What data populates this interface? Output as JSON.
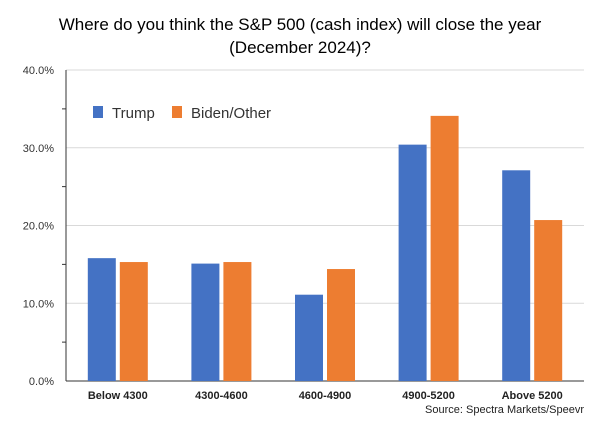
{
  "chart_data": {
    "type": "bar",
    "title_lines": [
      "Where do you think the S&P 500 (cash index) will close the year",
      "(December 2024)?"
    ],
    "categories": [
      "Below 4300",
      "4300-4600",
      "4600-4900",
      "4900-5200",
      "Above 5200"
    ],
    "series": [
      {
        "name": "Trump",
        "color": "#4472C4",
        "values": [
          15.8,
          15.1,
          11.1,
          30.4,
          27.1
        ]
      },
      {
        "name": "Biden/Other",
        "color": "#ED7D31",
        "values": [
          15.3,
          15.3,
          14.4,
          34.1,
          20.7
        ]
      }
    ],
    "ylim": [
      0,
      40
    ],
    "yticks": [
      "0.0%",
      "10.0%",
      "20.0%",
      "30.0%",
      "40.0%"
    ],
    "grid": true,
    "legend_position": "top-left",
    "source": "Source: Spectra Markets/Speevr"
  }
}
